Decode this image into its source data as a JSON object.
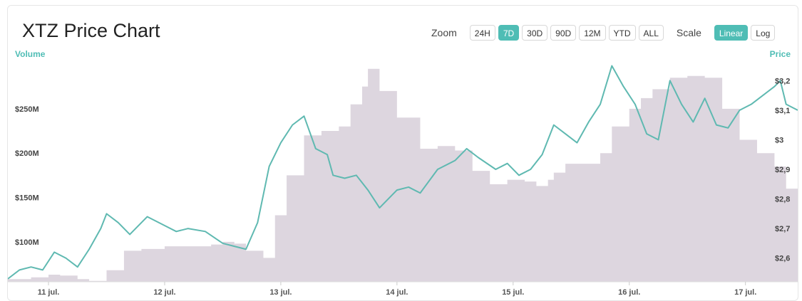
{
  "header": {
    "title": "XTZ Price Chart",
    "zoom_label": "Zoom",
    "zoom_options": [
      "24H",
      "7D",
      "30D",
      "90D",
      "12M",
      "YTD",
      "ALL"
    ],
    "zoom_active": "7D",
    "scale_label": "Scale",
    "scale_options": [
      "Linear",
      "Log"
    ],
    "scale_active": "Linear"
  },
  "colors": {
    "accent": "#4fbdb5",
    "price_line": "#5fb9b1",
    "volume_fill": "#ddd6df"
  },
  "chart_data": {
    "type": "line",
    "left_axis_label": "Volume",
    "right_axis_label": "Price",
    "left_ticks": [
      "$100M",
      "$150M",
      "$200M",
      "$250M"
    ],
    "left_tick_values": [
      100,
      150,
      200,
      250
    ],
    "right_ticks": [
      "$2,6",
      "$2,7",
      "$2,8",
      "$2,9",
      "$3",
      "$3,1",
      "$3,2"
    ],
    "right_tick_values": [
      2.6,
      2.7,
      2.8,
      2.9,
      3.0,
      3.1,
      3.2
    ],
    "x_ticks": [
      "11 jul.",
      "12 jul.",
      "13 jul.",
      "14 jul.",
      "15 jul.",
      "16 jul.",
      "17 jul."
    ],
    "x_tick_values": [
      11,
      12,
      13,
      14,
      15,
      16,
      17
    ],
    "x_range": [
      10.65,
      17.45
    ],
    "volume_range_millions": [
      55,
      302
    ],
    "price_range": [
      2.52,
      3.28
    ],
    "series": [
      {
        "kind": "volume-area",
        "x": [
          10.65,
          10.85,
          11.0,
          11.1,
          11.25,
          11.35,
          11.5,
          11.65,
          11.8,
          12.0,
          12.2,
          12.4,
          12.5,
          12.6,
          12.7,
          12.85,
          12.95,
          13.05,
          13.2,
          13.35,
          13.5,
          13.6,
          13.7,
          13.75,
          13.85,
          14.0,
          14.2,
          14.35,
          14.5,
          14.65,
          14.8,
          14.95,
          15.1,
          15.2,
          15.3,
          15.35,
          15.45,
          15.6,
          15.75,
          15.85,
          16.0,
          16.1,
          16.2,
          16.35,
          16.5,
          16.65,
          16.8,
          16.95,
          17.1,
          17.25,
          17.35,
          17.45
        ],
        "values_millions": [
          58,
          60,
          63,
          62,
          58,
          56,
          68,
          90,
          92,
          95,
          95,
          97,
          100,
          98,
          90,
          82,
          130,
          175,
          220,
          225,
          230,
          255,
          275,
          295,
          270,
          240,
          205,
          208,
          203,
          180,
          165,
          170,
          168,
          163,
          170,
          178,
          188,
          188,
          200,
          230,
          250,
          262,
          272,
          285,
          287,
          285,
          250,
          215,
          200,
          185,
          160,
          145
        ]
      },
      {
        "kind": "price-line",
        "x": [
          10.65,
          10.75,
          10.85,
          10.95,
          11.05,
          11.15,
          11.25,
          11.35,
          11.45,
          11.5,
          11.6,
          11.7,
          11.85,
          12.0,
          12.1,
          12.2,
          12.35,
          12.5,
          12.6,
          12.7,
          12.8,
          12.9,
          13.0,
          13.1,
          13.2,
          13.3,
          13.4,
          13.45,
          13.55,
          13.65,
          13.75,
          13.85,
          14.0,
          14.1,
          14.2,
          14.35,
          14.5,
          14.6,
          14.7,
          14.85,
          14.95,
          15.05,
          15.15,
          15.25,
          15.35,
          15.45,
          15.55,
          15.65,
          15.75,
          15.85,
          15.95,
          16.05,
          16.15,
          16.25,
          16.35,
          16.45,
          16.55,
          16.65,
          16.75,
          16.85,
          16.95,
          17.05,
          17.15,
          17.25,
          17.3,
          17.35,
          17.45
        ],
        "values": [
          2.53,
          2.56,
          2.57,
          2.56,
          2.62,
          2.6,
          2.57,
          2.63,
          2.7,
          2.75,
          2.72,
          2.68,
          2.74,
          2.71,
          2.69,
          2.7,
          2.69,
          2.65,
          2.64,
          2.63,
          2.72,
          2.91,
          2.99,
          3.05,
          3.08,
          2.97,
          2.95,
          2.88,
          2.87,
          2.88,
          2.83,
          2.77,
          2.83,
          2.84,
          2.82,
          2.9,
          2.93,
          2.97,
          2.94,
          2.9,
          2.92,
          2.88,
          2.9,
          2.95,
          3.05,
          3.02,
          2.99,
          3.06,
          3.12,
          3.25,
          3.18,
          3.12,
          3.02,
          3.0,
          3.2,
          3.12,
          3.06,
          3.14,
          3.05,
          3.04,
          3.1,
          3.12,
          3.15,
          3.18,
          3.2,
          3.12,
          3.1
        ]
      }
    ]
  }
}
